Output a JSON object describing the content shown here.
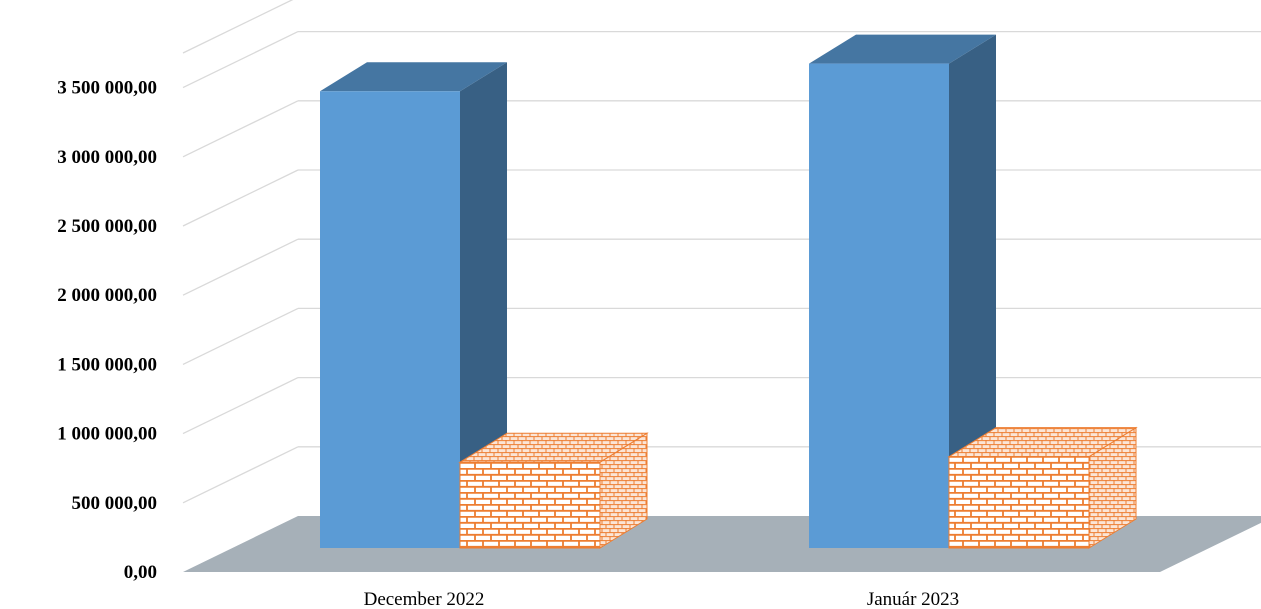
{
  "chart_data": {
    "type": "bar",
    "style": "3d-clustered-column",
    "categories": [
      "December 2022",
      "Január 2023"
    ],
    "series": [
      {
        "values": [
          3300000,
          3500000
        ],
        "color": "#5b9bd5",
        "fill": "solid"
      },
      {
        "values": [
          620000,
          660000
        ],
        "color": "#ed7d31",
        "fill": "brick-pattern"
      }
    ],
    "ylim": [
      0,
      3750000
    ],
    "y_ticks": [
      0,
      500000,
      1000000,
      1500000,
      2000000,
      2500000,
      3000000,
      3500000
    ],
    "y_tick_labels": [
      "0,00",
      "500 000,00",
      "1 000 000,00",
      "1 500 000,00",
      "2 000 000,00",
      "2 500 000,00",
      "3 000 000,00",
      "3 500 000,00"
    ],
    "grid": true,
    "legend": "none",
    "floor_color": "#a6b0b8",
    "gridline_color": "#d9d9d9"
  }
}
